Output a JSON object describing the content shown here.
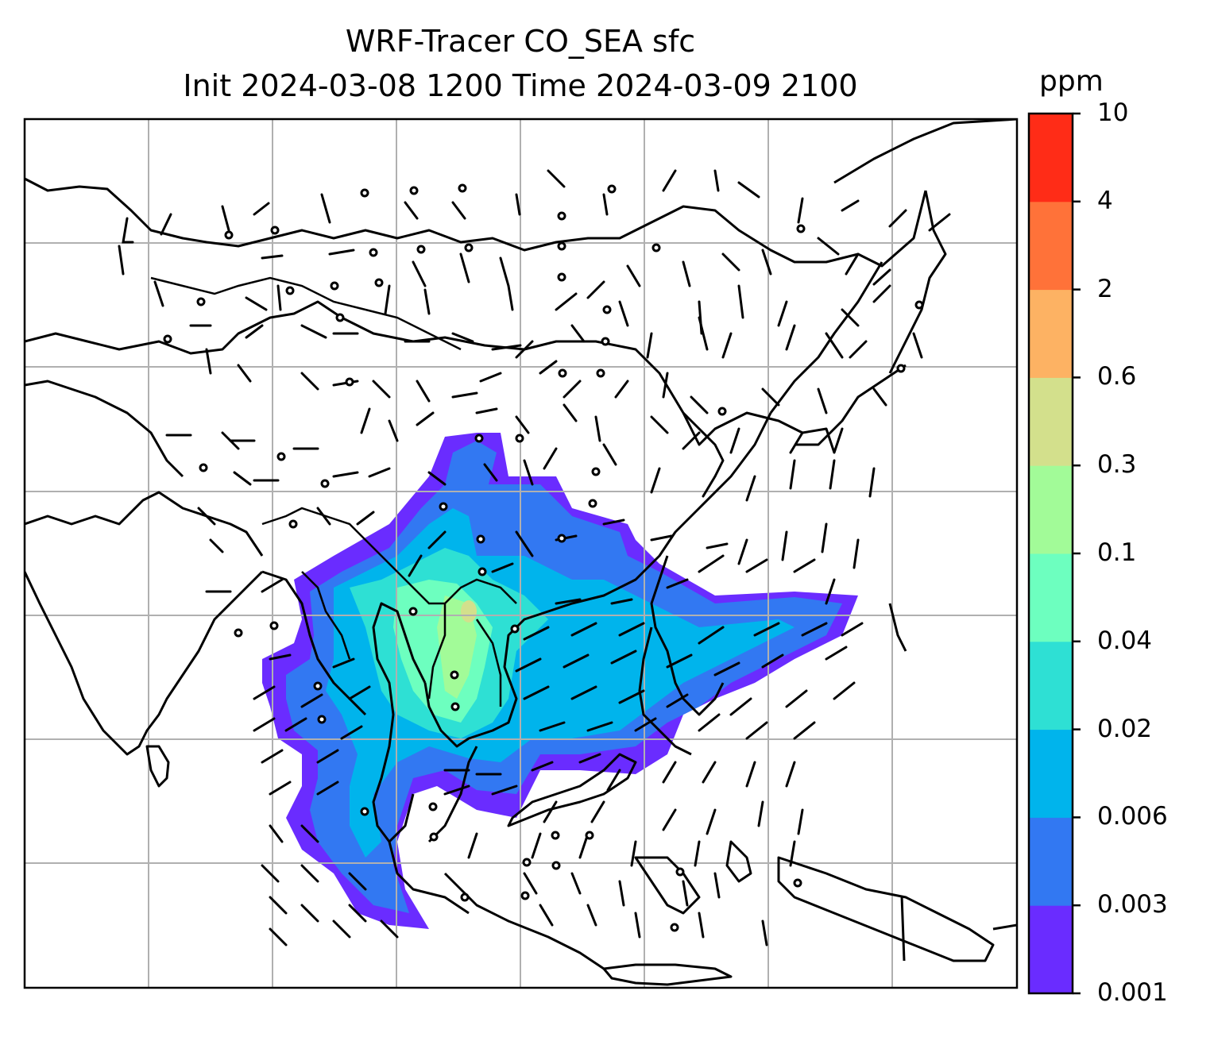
{
  "title": {
    "line1": "WRF-Tracer CO_SEA sfc",
    "line2": "Init 2024-03-08 1200 Time 2024-03-09 2100"
  },
  "colorbar": {
    "unit": "ppm",
    "ticks": [
      "0.001",
      "0.003",
      "0.006",
      "0.02",
      "0.04",
      "0.1",
      "0.3",
      "0.6",
      "2",
      "4",
      "10"
    ],
    "colors": [
      "#6a2cff",
      "#3278f2",
      "#00b4ec",
      "#2ee0d4",
      "#6dffbf",
      "#a2fb98",
      "#d3e08c",
      "#fdb263",
      "#ff7239",
      "#ff2c17"
    ]
  },
  "map": {
    "gridlines": true,
    "layers": [
      "coastlines",
      "country-borders",
      "wind-barbs",
      "tracer-concentration"
    ]
  }
}
